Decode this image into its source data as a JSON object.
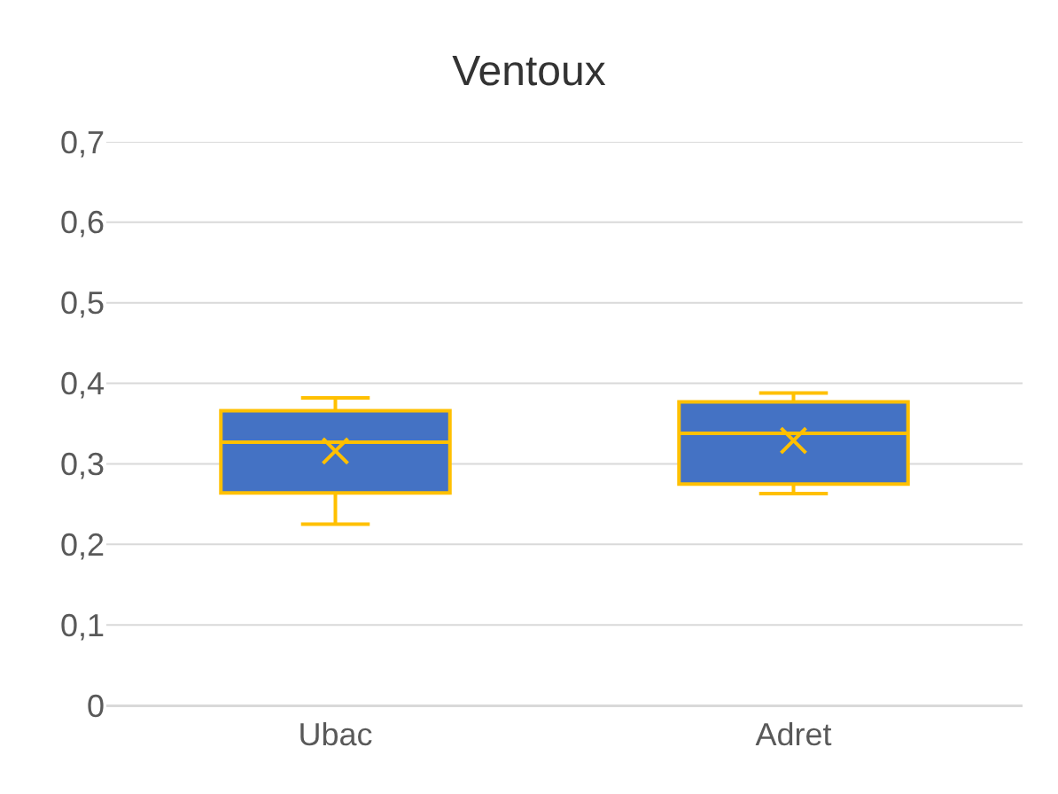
{
  "chart_data": {
    "type": "box",
    "title": "Ventoux",
    "categories": [
      "Ubac",
      "Adret"
    ],
    "boxes": [
      {
        "low": 0.225,
        "q1": 0.264,
        "median": 0.327,
        "q3": 0.366,
        "high": 0.382,
        "mean": 0.316
      },
      {
        "low": 0.263,
        "q1": 0.275,
        "median": 0.338,
        "q3": 0.377,
        "high": 0.388,
        "mean": 0.329
      }
    ],
    "color": "#4472c4",
    "ylim": [
      0,
      0.7
    ],
    "yticks": [
      {
        "value": 0,
        "label": "0"
      },
      {
        "value": 0.1,
        "label": "0,1"
      },
      {
        "value": 0.2,
        "label": "0,2"
      },
      {
        "value": 0.3,
        "label": "0,3"
      },
      {
        "value": 0.4,
        "label": "0,4"
      },
      {
        "value": 0.5,
        "label": "0,5"
      },
      {
        "value": 0.6,
        "label": "0,6"
      },
      {
        "value": 0.7,
        "label": "0,7"
      }
    ],
    "grid": "y"
  }
}
